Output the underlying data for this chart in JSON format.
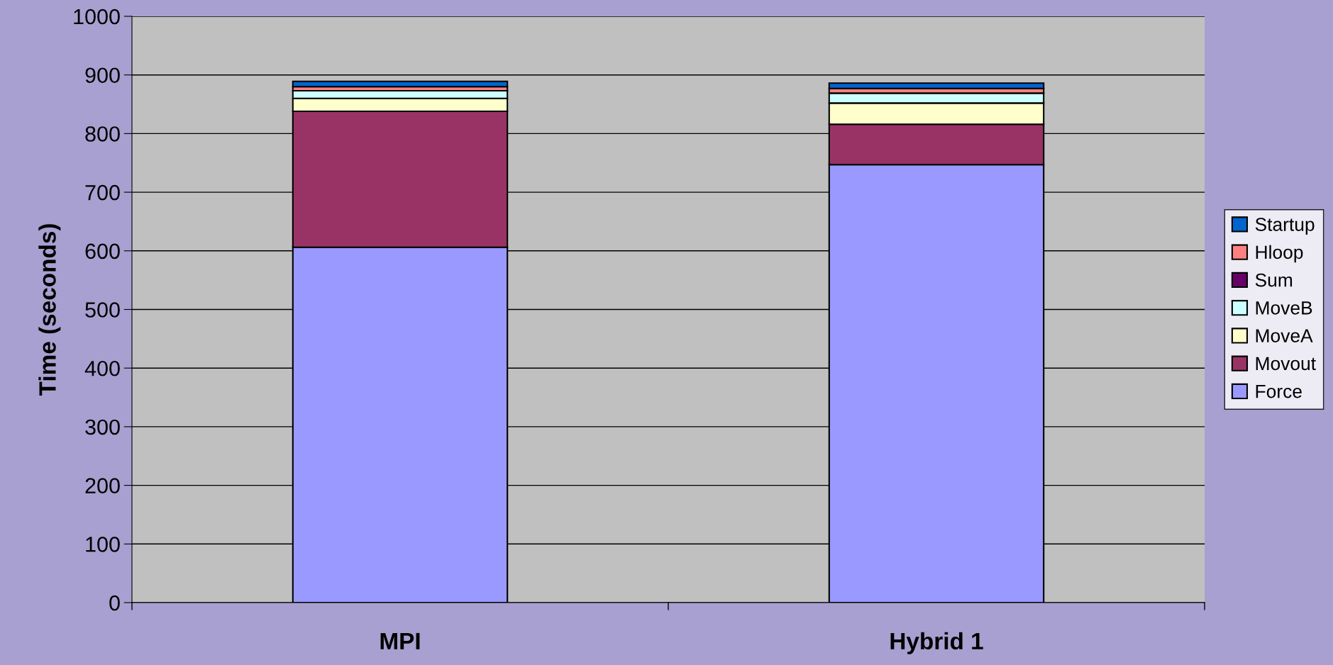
{
  "chart_data": {
    "type": "bar",
    "stacked": true,
    "ylabel": "Time (seconds)",
    "categories": [
      "MPI",
      "Hybrid 1"
    ],
    "series": [
      {
        "name": "Force",
        "color": "#9999ff",
        "values": [
          606,
          747
        ]
      },
      {
        "name": "Movout",
        "color": "#993366",
        "values": [
          232,
          69
        ]
      },
      {
        "name": "MoveA",
        "color": "#ffffcc",
        "values": [
          22,
          36
        ]
      },
      {
        "name": "MoveB",
        "color": "#ccffff",
        "values": [
          13,
          17
        ]
      },
      {
        "name": "Sum",
        "color": "#660066",
        "values": [
          null,
          null
        ]
      },
      {
        "name": "Hloop",
        "color": "#ff8080",
        "values": [
          7,
          8
        ]
      },
      {
        "name": "Startup",
        "color": "#0066cc",
        "values": [
          9,
          9
        ]
      }
    ],
    "ylim": [
      0,
      1000
    ],
    "yticks": [
      0,
      100,
      200,
      300,
      400,
      500,
      600,
      700,
      800,
      900,
      1000
    ],
    "grid": "y",
    "legend": "right"
  }
}
